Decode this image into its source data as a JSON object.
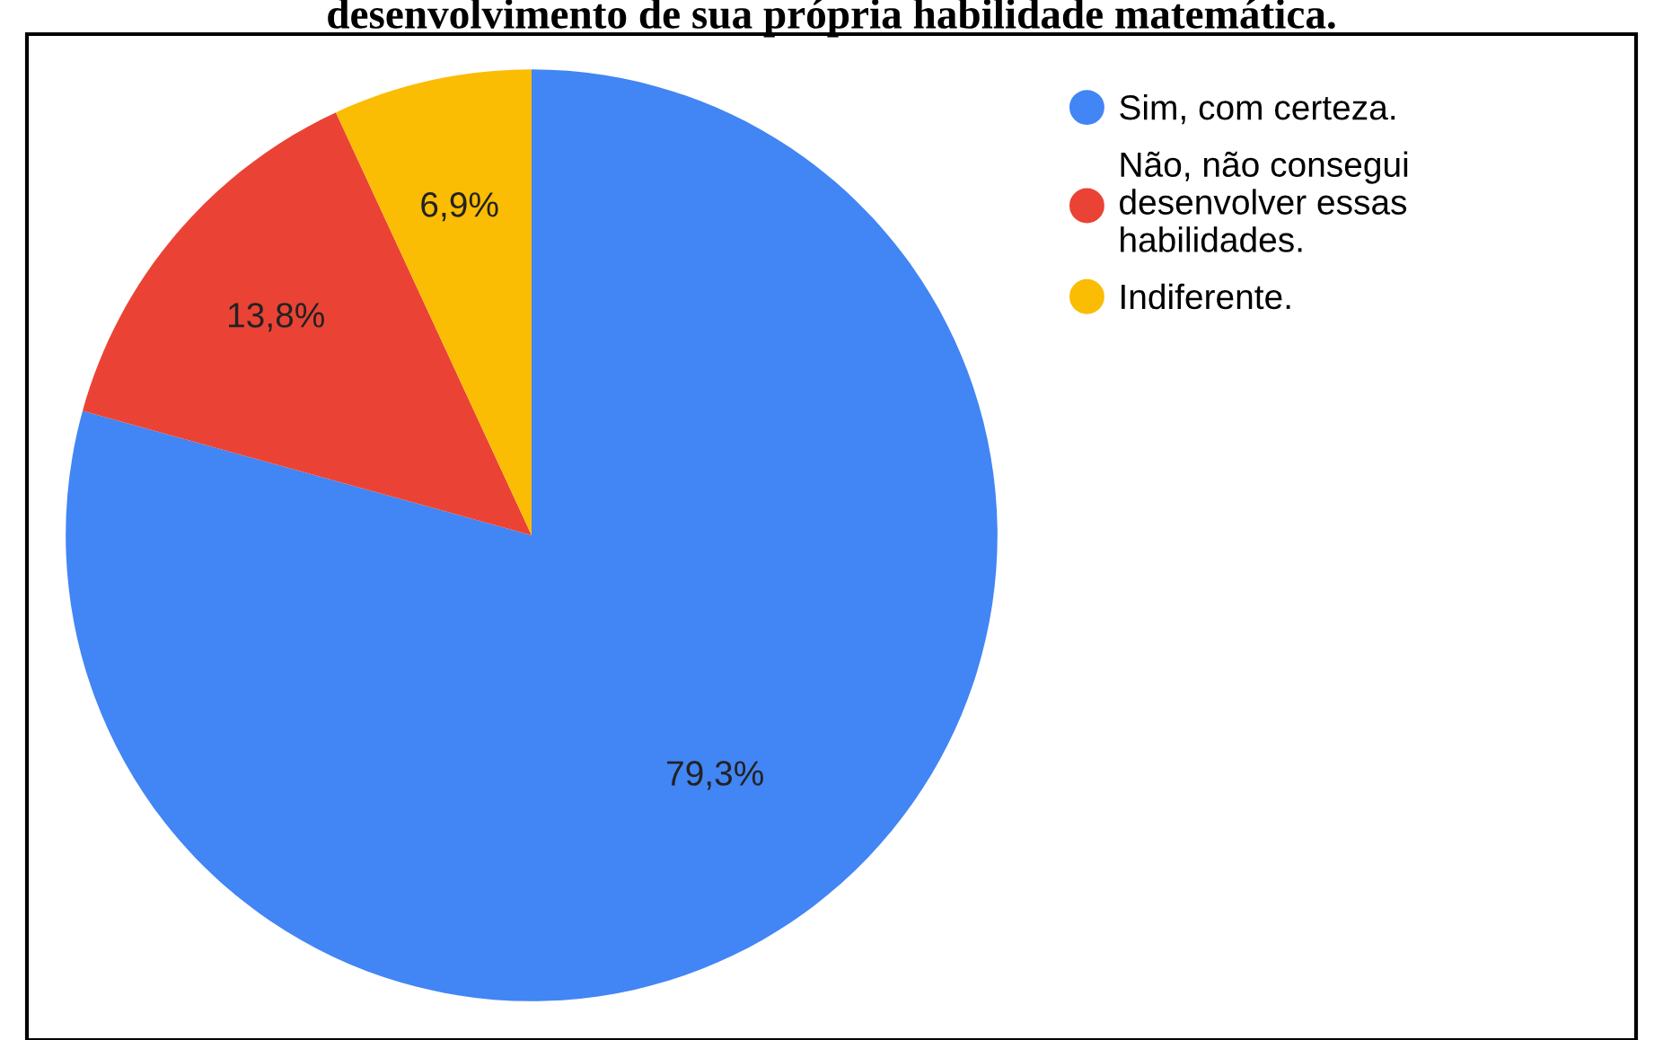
{
  "chart_data": {
    "type": "pie",
    "title": "desenvolvimento de sua própria habilidade matemática.",
    "categories": [
      "Sim, com certeza.",
      "Não, não consegui\ndesenvolver essas\nhabilidades.",
      "Indiferente."
    ],
    "values": [
      79.3,
      13.8,
      6.9
    ],
    "colors": [
      "#4285f4",
      "#ea4335",
      "#fbbc04"
    ],
    "value_labels": [
      "79,3%",
      "13,8%",
      "6,9%"
    ],
    "legend": "top right"
  }
}
